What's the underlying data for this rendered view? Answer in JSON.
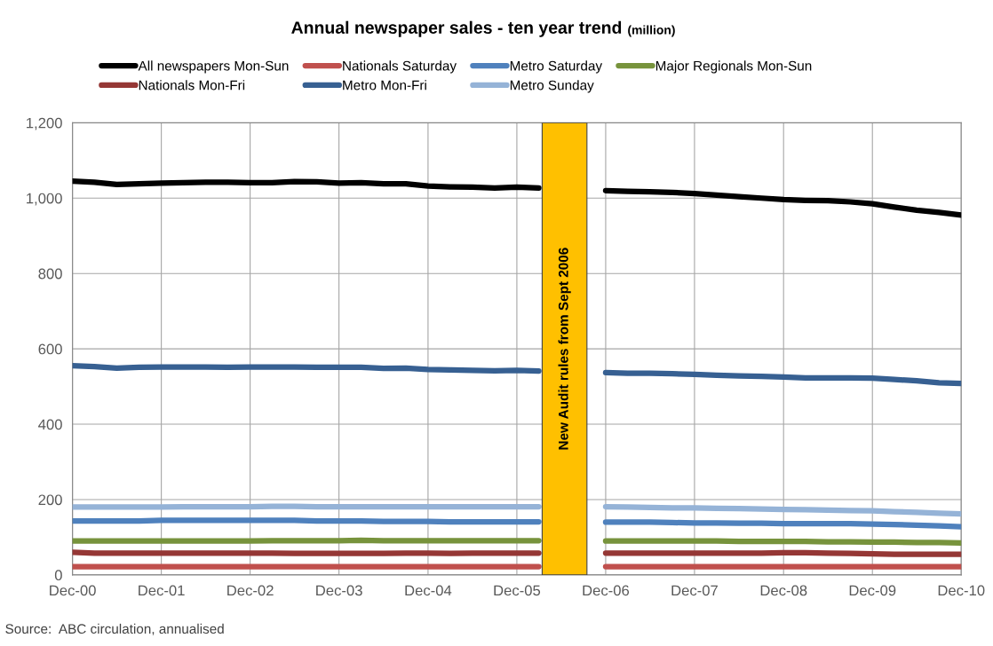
{
  "chart_data": {
    "type": "line",
    "title": "Annual newspaper sales - ten year trend",
    "subtitle": "(million)",
    "x": [
      "2000-12",
      "2001-03",
      "2001-06",
      "2001-09",
      "2001-12",
      "2002-03",
      "2002-06",
      "2002-09",
      "2002-12",
      "2003-03",
      "2003-06",
      "2003-09",
      "2003-12",
      "2004-03",
      "2004-06",
      "2004-09",
      "2004-12",
      "2005-03",
      "2005-06",
      "2005-09",
      "2005-12",
      "2006-03",
      "2006-06",
      "2006-09",
      "2006-12",
      "2007-03",
      "2007-06",
      "2007-09",
      "2007-12",
      "2008-03",
      "2008-06",
      "2008-09",
      "2008-12",
      "2009-03",
      "2009-06",
      "2009-09",
      "2009-12",
      "2010-03",
      "2010-06",
      "2010-09",
      "2010-12"
    ],
    "series": [
      {
        "name": "All newspapers Mon-Sun",
        "color": "#000000",
        "values": [
          1045,
          1042,
          1036,
          1038,
          1040,
          1041,
          1042,
          1042,
          1041,
          1041,
          1044,
          1043,
          1040,
          1041,
          1038,
          1038,
          1032,
          1030,
          1029,
          1027,
          1029,
          1027,
          null,
          null,
          1020,
          1018,
          1017,
          1015,
          1012,
          1008,
          1004,
          1000,
          996,
          994,
          993,
          990,
          985,
          976,
          968,
          962,
          955
        ]
      },
      {
        "name": "Nationals Mon-Fri",
        "color": "#953735",
        "values": [
          60,
          58,
          58,
          58,
          58,
          58,
          58,
          58,
          58,
          58,
          57,
          57,
          57,
          57,
          57,
          58,
          58,
          57,
          58,
          58,
          58,
          58,
          null,
          null,
          58,
          58,
          58,
          58,
          58,
          58,
          58,
          58,
          59,
          59,
          58,
          57,
          56,
          55,
          55,
          55,
          55
        ]
      },
      {
        "name": "Nationals Saturday",
        "color": "#c0504d",
        "values": [
          22,
          22,
          22,
          22,
          22,
          22,
          22,
          22,
          22,
          22,
          22,
          22,
          22,
          22,
          22,
          22,
          22,
          22,
          22,
          22,
          22,
          22,
          null,
          null,
          22,
          22,
          22,
          22,
          22,
          22,
          22,
          22,
          22,
          22,
          22,
          22,
          22,
          22,
          22,
          22,
          22
        ]
      },
      {
        "name": "Metro Mon-Fri",
        "color": "#376092",
        "values": [
          555,
          553,
          549,
          551,
          552,
          552,
          552,
          551,
          552,
          552,
          552,
          551,
          551,
          551,
          548,
          549,
          545,
          544,
          543,
          542,
          543,
          541,
          null,
          null,
          537,
          535,
          535,
          534,
          532,
          530,
          528,
          527,
          525,
          523,
          523,
          523,
          522,
          519,
          515,
          510,
          508
        ]
      },
      {
        "name": "Metro Saturday",
        "color": "#4f81bd",
        "values": [
          143,
          143,
          143,
          143,
          145,
          145,
          145,
          145,
          145,
          145,
          145,
          143,
          143,
          143,
          142,
          142,
          142,
          141,
          141,
          141,
          141,
          141,
          null,
          null,
          140,
          140,
          140,
          139,
          138,
          138,
          137,
          137,
          136,
          136,
          136,
          136,
          135,
          134,
          132,
          130,
          128
        ]
      },
      {
        "name": "Metro Sunday",
        "color": "#95b3d7",
        "values": [
          180,
          180,
          180,
          180,
          180,
          181,
          181,
          181,
          181,
          182,
          182,
          181,
          181,
          181,
          181,
          181,
          181,
          181,
          181,
          181,
          181,
          181,
          null,
          null,
          181,
          180,
          179,
          178,
          178,
          177,
          176,
          175,
          174,
          173,
          172,
          171,
          170,
          168,
          166,
          164,
          162
        ]
      },
      {
        "name": "Major Regionals Mon-Sun",
        "color": "#77933c",
        "values": [
          90,
          90,
          90,
          90,
          90,
          90,
          90,
          90,
          90,
          91,
          91,
          91,
          91,
          92,
          91,
          91,
          91,
          91,
          91,
          91,
          91,
          91,
          null,
          null,
          90,
          90,
          90,
          90,
          90,
          90,
          89,
          89,
          89,
          89,
          88,
          88,
          87,
          87,
          86,
          86,
          85
        ]
      }
    ],
    "xlim": [
      "2000-12",
      "2010-12"
    ],
    "xticks": [
      {
        "value": "2000-12",
        "label": "Dec-00"
      },
      {
        "value": "2001-12",
        "label": "Dec-01"
      },
      {
        "value": "2002-12",
        "label": "Dec-02"
      },
      {
        "value": "2003-12",
        "label": "Dec-03"
      },
      {
        "value": "2004-12",
        "label": "Dec-04"
      },
      {
        "value": "2005-12",
        "label": "Dec-05"
      },
      {
        "value": "2006-12",
        "label": "Dec-06"
      },
      {
        "value": "2007-12",
        "label": "Dec-07"
      },
      {
        "value": "2008-12",
        "label": "Dec-08"
      },
      {
        "value": "2009-12",
        "label": "Dec-09"
      },
      {
        "value": "2010-12",
        "label": "Dec-10"
      }
    ],
    "ylim": [
      0,
      1200
    ],
    "yticks": [
      0,
      200,
      400,
      600,
      800,
      {
        "value": 1000,
        "label": "1,000"
      },
      {
        "value": 1200,
        "label": "1,200"
      }
    ],
    "bands": [
      {
        "axis": "x",
        "from": "2006-03-15",
        "to": "2006-09-15",
        "label": "New Audit rules from Sept 2006",
        "color": "#ffc000"
      }
    ],
    "annotations": [
      "Source:  ABC circulation, annualised"
    ],
    "grid": true,
    "legend": "top",
    "marker": "none",
    "line_style": "solid"
  }
}
